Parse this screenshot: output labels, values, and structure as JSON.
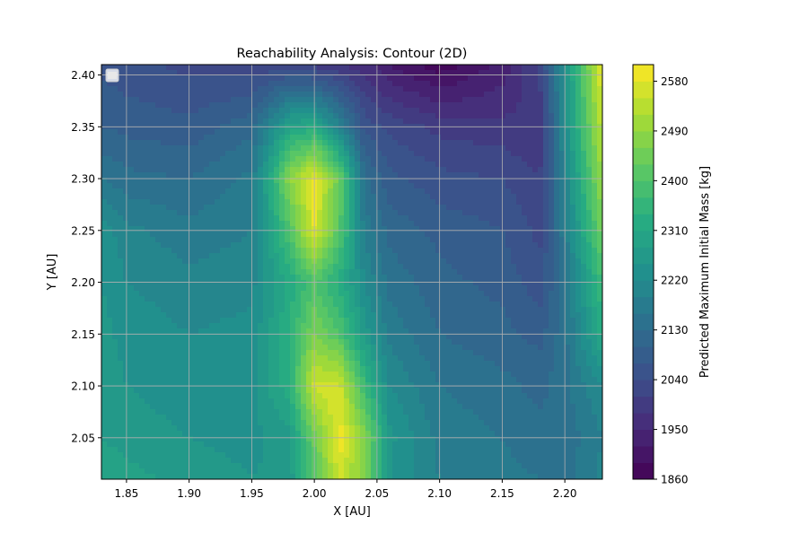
{
  "chart_data": {
    "type": "contour",
    "title": "Reachability Analysis: Contour (2D)",
    "xlabel": "X [AU]",
    "ylabel": "Y [AU]",
    "xlim": [
      1.83,
      2.23
    ],
    "ylim": [
      2.01,
      2.41
    ],
    "xticks": [
      1.85,
      1.9,
      1.95,
      2.0,
      2.05,
      2.1,
      2.15,
      2.2
    ],
    "xtick_labels": [
      "1.85",
      "1.90",
      "1.95",
      "2.00",
      "2.05",
      "2.10",
      "2.15",
      "2.20"
    ],
    "yticks": [
      2.05,
      2.1,
      2.15,
      2.2,
      2.25,
      2.3,
      2.35,
      2.4
    ],
    "ytick_labels": [
      "2.05",
      "2.10",
      "2.15",
      "2.20",
      "2.25",
      "2.30",
      "2.35",
      "2.40"
    ],
    "grid": true,
    "legend": "top-left, empty",
    "colormap": "viridis",
    "colorbar": {
      "label": "Predicted Maximum Initial Mass [kg]",
      "min": 1860,
      "max": 2610,
      "levels": 25,
      "ticks": [
        1860,
        1950,
        2040,
        2130,
        2220,
        2310,
        2400,
        2490,
        2580
      ],
      "tick_labels": [
        "1860",
        "1950",
        "2040",
        "2130",
        "2220",
        "2310",
        "2400",
        "2490",
        "2580"
      ]
    },
    "grid_data": {
      "x": [
        1.83,
        1.85,
        1.9,
        1.95,
        1.98,
        2.0,
        2.02,
        2.04,
        2.06,
        2.1,
        2.15,
        2.18,
        2.2,
        2.23
      ],
      "y": [
        2.01,
        2.05,
        2.1,
        2.15,
        2.2,
        2.25,
        2.3,
        2.35,
        2.41
      ],
      "z": [
        [
          2300,
          2290,
          2270,
          2250,
          2260,
          2400,
          2560,
          2460,
          2250,
          2190,
          2170,
          2160,
          2150,
          2200
        ],
        [
          2280,
          2270,
          2250,
          2240,
          2270,
          2440,
          2600,
          2480,
          2260,
          2180,
          2160,
          2140,
          2140,
          2190
        ],
        [
          2270,
          2250,
          2230,
          2240,
          2330,
          2560,
          2560,
          2370,
          2220,
          2160,
          2140,
          2120,
          2150,
          2220
        ],
        [
          2260,
          2240,
          2220,
          2230,
          2340,
          2460,
          2400,
          2270,
          2180,
          2130,
          2110,
          2090,
          2150,
          2320
        ],
        [
          2250,
          2220,
          2200,
          2210,
          2320,
          2400,
          2330,
          2220,
          2150,
          2110,
          2090,
          2050,
          2150,
          2380
        ],
        [
          2240,
          2200,
          2170,
          2190,
          2400,
          2580,
          2410,
          2180,
          2120,
          2090,
          2070,
          2030,
          2180,
          2450
        ],
        [
          2160,
          2140,
          2130,
          2170,
          2480,
          2590,
          2440,
          2140,
          2080,
          2050,
          2040,
          2010,
          2200,
          2500
        ],
        [
          2100,
          2090,
          2080,
          2120,
          2300,
          2320,
          2200,
          2060,
          2030,
          2000,
          1990,
          1980,
          2230,
          2540
        ],
        [
          2060,
          2050,
          2030,
          2020,
          2010,
          2000,
          1980,
          1960,
          1920,
          1870,
          1930,
          2020,
          2240,
          2590
        ]
      ]
    }
  }
}
